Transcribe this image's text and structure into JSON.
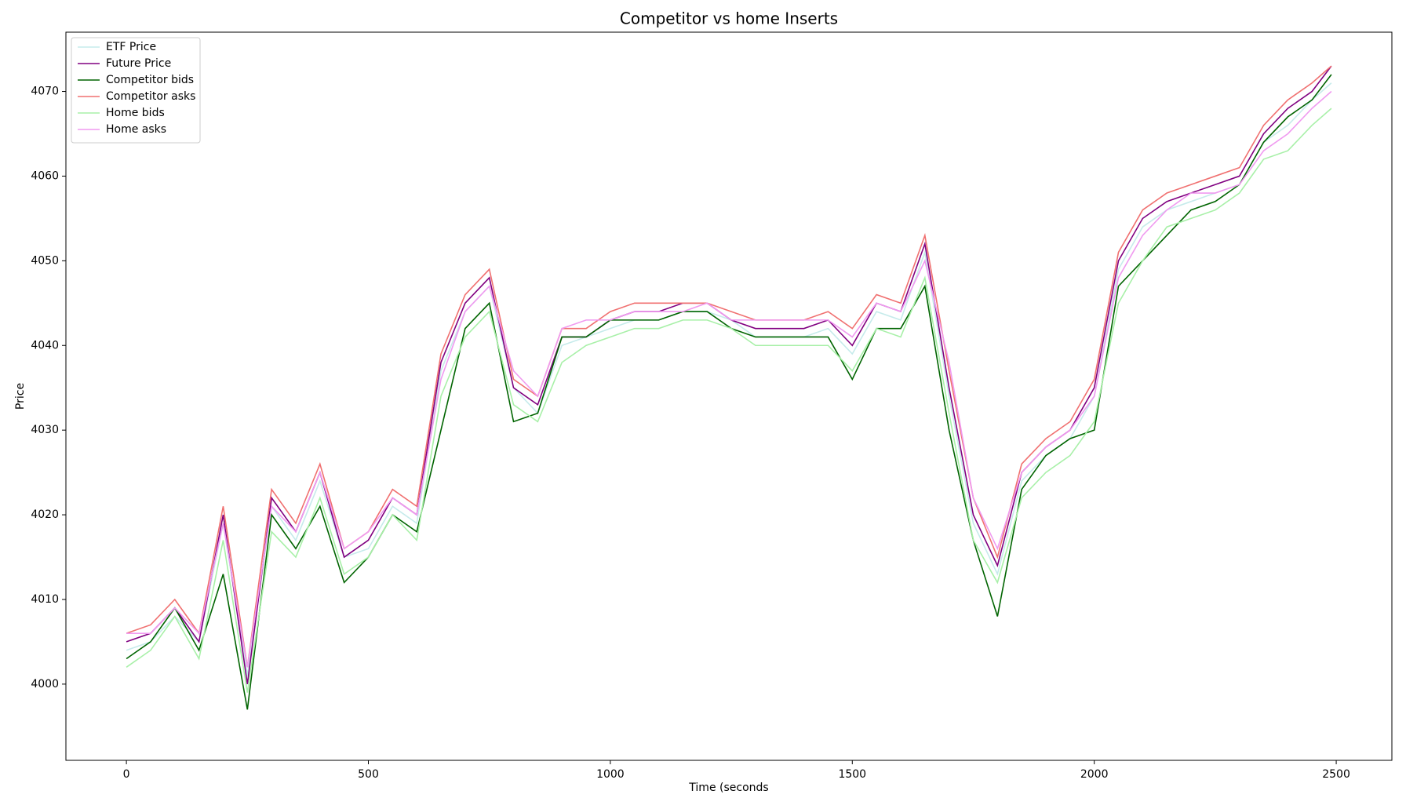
{
  "chart_data": {
    "type": "line",
    "title": "Competitor vs home Inserts",
    "x_label": "Time (seconds",
    "y_label": "Price",
    "x": [
      0,
      50,
      100,
      150,
      200,
      250,
      300,
      350,
      400,
      450,
      500,
      550,
      600,
      650,
      700,
      750,
      800,
      850,
      900,
      950,
      1000,
      1050,
      1100,
      1150,
      1200,
      1250,
      1300,
      1350,
      1400,
      1450,
      1500,
      1550,
      1600,
      1650,
      1700,
      1750,
      1800,
      1850,
      1900,
      1950,
      2000,
      2050,
      2100,
      2150,
      2200,
      2250,
      2300,
      2350,
      2400,
      2450,
      2490
    ],
    "series": [
      {
        "name": "ETF Price",
        "color": "#c6ebeb",
        "values": [
          4004,
          4005,
          4008,
          4005,
          4019,
          4001,
          4021,
          4017,
          4024,
          4015,
          4016,
          4021,
          4019,
          4037,
          4044,
          4047,
          4035,
          4032,
          4040,
          4041,
          4042,
          4043,
          4043,
          4044,
          4044,
          4043,
          4041,
          4041,
          4041,
          4042,
          4039,
          4044,
          4043,
          4051,
          4034,
          4019,
          4013,
          4024,
          4027,
          4029,
          4034,
          4049,
          4054,
          4056,
          4057,
          4058,
          4059,
          4064,
          4066,
          4069,
          4071
        ]
      },
      {
        "name": "Future Price",
        "color": "#800080",
        "values": [
          4005,
          4006,
          4009,
          4005,
          4020,
          4000,
          4022,
          4018,
          4025,
          4015,
          4017,
          4022,
          4020,
          4038,
          4045,
          4048,
          4035,
          4033,
          4041,
          4041,
          4043,
          4044,
          4044,
          4045,
          4045,
          4043,
          4042,
          4042,
          4042,
          4043,
          4040,
          4045,
          4044,
          4052,
          4035,
          4020,
          4014,
          4025,
          4028,
          4030,
          4035,
          4050,
          4055,
          4057,
          4058,
          4059,
          4060,
          4065,
          4068,
          4070,
          4073
        ]
      },
      {
        "name": "Competitor bids",
        "color": "#006400",
        "values": [
          4003,
          4005,
          4009,
          4004,
          4013,
          3997,
          4020,
          4016,
          4021,
          4012,
          4015,
          4020,
          4018,
          4030,
          4042,
          4045,
          4031,
          4032,
          4041,
          4041,
          4043,
          4043,
          4043,
          4044,
          4044,
          4042,
          4041,
          4041,
          4041,
          4041,
          4036,
          4042,
          4042,
          4047,
          4030,
          4017,
          4008,
          4023,
          4027,
          4029,
          4030,
          4047,
          4050,
          4053,
          4056,
          4057,
          4059,
          4064,
          4067,
          4069,
          4072
        ]
      },
      {
        "name": "Competitor asks",
        "color": "#f07070",
        "values": [
          4006,
          4007,
          4010,
          4006,
          4021,
          4002,
          4023,
          4019,
          4026,
          4016,
          4018,
          4023,
          4021,
          4039,
          4046,
          4049,
          4036,
          4034,
          4042,
          4042,
          4044,
          4045,
          4045,
          4045,
          4045,
          4044,
          4043,
          4043,
          4043,
          4044,
          4042,
          4046,
          4045,
          4053,
          4037,
          4022,
          4015,
          4026,
          4029,
          4031,
          4036,
          4051,
          4056,
          4058,
          4059,
          4060,
          4061,
          4066,
          4069,
          4071,
          4073
        ]
      },
      {
        "name": "Home bids",
        "color": "#a8f0a8",
        "values": [
          4002,
          4004,
          4008,
          4003,
          4017,
          3999,
          4018,
          4015,
          4022,
          4013,
          4015,
          4020,
          4017,
          4034,
          4041,
          4044,
          4033,
          4031,
          4038,
          4040,
          4041,
          4042,
          4042,
          4043,
          4043,
          4042,
          4040,
          4040,
          4040,
          4040,
          4037,
          4042,
          4041,
          4048,
          4032,
          4017,
          4012,
          4022,
          4025,
          4027,
          4031,
          4045,
          4050,
          4054,
          4055,
          4056,
          4058,
          4062,
          4063,
          4066,
          4068
        ]
      },
      {
        "name": "Home asks",
        "color": "#f09af0",
        "values": [
          4006,
          4006,
          4009,
          4006,
          4019,
          4002,
          4021,
          4018,
          4025,
          4016,
          4018,
          4022,
          4020,
          4036,
          4044,
          4047,
          4037,
          4034,
          4042,
          4043,
          4043,
          4044,
          4044,
          4044,
          4045,
          4043,
          4043,
          4043,
          4043,
          4043,
          4041,
          4045,
          4044,
          4050,
          4038,
          4022,
          4016,
          4025,
          4028,
          4030,
          4034,
          4048,
          4053,
          4056,
          4058,
          4058,
          4059,
          4063,
          4065,
          4068,
          4070
        ]
      }
    ],
    "xlim": [
      -125,
      2615
    ],
    "xticks": [
      0,
      500,
      1000,
      1500,
      2000,
      2500
    ],
    "ylim": [
      3991,
      4077
    ],
    "yticks": [
      4000,
      4010,
      4020,
      4030,
      4040,
      4050,
      4060,
      4070
    ],
    "legend": "upper left"
  }
}
